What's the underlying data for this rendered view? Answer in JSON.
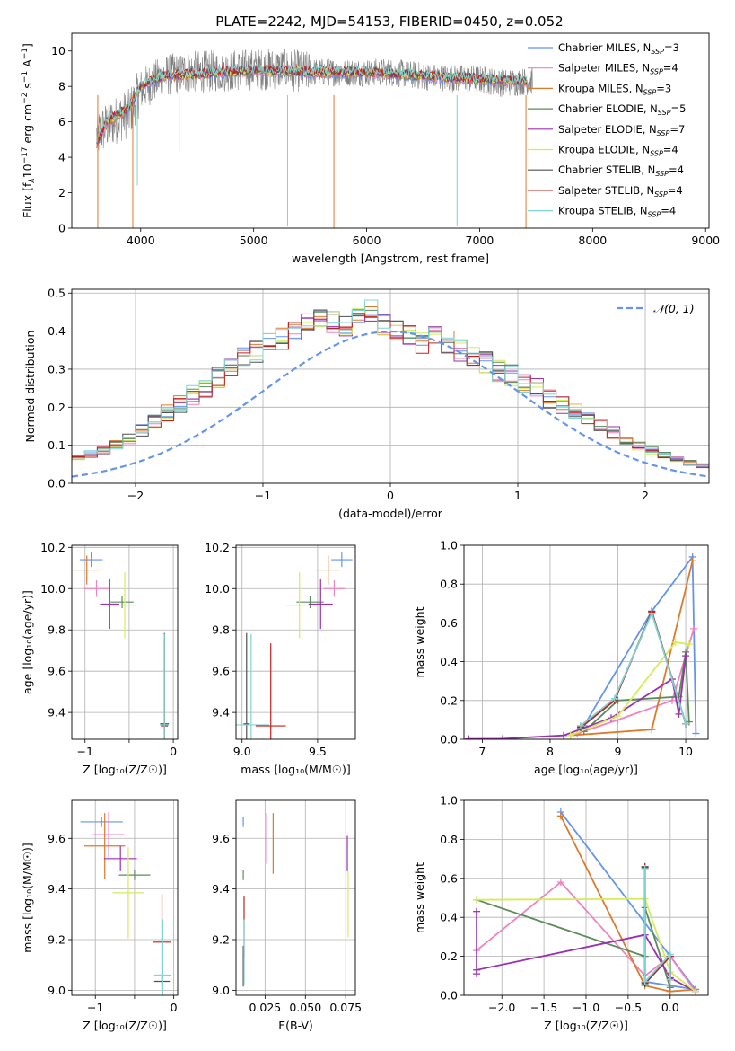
{
  "figure": {
    "title": "PLATE=2242, MJD=54153, FIBERID=0450, z=0.052"
  },
  "colors": {
    "Chabrier MILES": "#6495ed",
    "Salpeter MILES": "#ee82c2",
    "Kroupa MILES": "#e0782a",
    "Chabrier ELODIE": "#5c8c5c",
    "Salpeter ELODIE": "#9b30b0",
    "Kroupa ELODIE": "#d4ec5a",
    "Chabrier STELIB": "#505050",
    "Salpeter STELIB": "#c81e1e",
    "Kroupa STELIB": "#7fd4d4",
    "data_spectrum": "#808080",
    "normal_curve": "#6495ed"
  },
  "chart_data": [
    {
      "id": "spectrum",
      "type": "line",
      "xlabel": "wavelength [Angstrom, rest frame]",
      "ylabel_parts": [
        "Flux [f",
        "λ",
        "10",
        "−17",
        " erg cm",
        "−2",
        " s",
        "−1",
        " A",
        "−1",
        "]"
      ],
      "xlim": [
        3390,
        9030
      ],
      "ylim": [
        0,
        11
      ],
      "xticks": [
        4000,
        5000,
        6000,
        7000,
        8000,
        9000
      ],
      "yticks": [
        0,
        2,
        4,
        6,
        8,
        10
      ],
      "grid": false,
      "legend_position": "upper right",
      "legend": [
        {
          "label": "Chabrier MILES",
          "nssp": "3"
        },
        {
          "label": "Salpeter MILES",
          "nssp": "4"
        },
        {
          "label": "Kroupa MILES",
          "nssp": "3"
        },
        {
          "label": "Chabrier ELODIE",
          "nssp": "5"
        },
        {
          "label": "Salpeter ELODIE",
          "nssp": "7"
        },
        {
          "label": "Kroupa ELODIE",
          "nssp": "4"
        },
        {
          "label": "Chabrier STELIB",
          "nssp": "4"
        },
        {
          "label": "Salpeter STELIB",
          "nssp": "4"
        },
        {
          "label": "Kroupa STELIB",
          "nssp": "4"
        }
      ],
      "data_range": [
        3610,
        7470
      ],
      "data_anchors": [
        [
          3610,
          5.2
        ],
        [
          3700,
          5.8
        ],
        [
          3900,
          6.5
        ],
        [
          4000,
          7.8
        ],
        [
          4200,
          8.6
        ],
        [
          4400,
          8.8
        ],
        [
          4800,
          8.9
        ],
        [
          5200,
          9.0
        ],
        [
          5500,
          8.8
        ],
        [
          5800,
          8.8
        ],
        [
          6200,
          8.8
        ],
        [
          6600,
          8.5
        ],
        [
          7000,
          8.4
        ],
        [
          7200,
          8.2
        ],
        [
          7470,
          8.3
        ]
      ],
      "model_range": [
        3610,
        7420
      ],
      "model_anchors": [
        [
          3610,
          4.8
        ],
        [
          3700,
          6.0
        ],
        [
          3900,
          6.8
        ],
        [
          4000,
          8.0
        ],
        [
          4200,
          8.6
        ],
        [
          4500,
          8.7
        ],
        [
          5000,
          8.9
        ],
        [
          5500,
          8.8
        ],
        [
          6000,
          8.8
        ],
        [
          6500,
          8.6
        ],
        [
          7000,
          8.4
        ],
        [
          7420,
          8.3
        ]
      ],
      "dips": [
        [
          3620,
          0.0
        ],
        [
          3720,
          0.0
        ],
        [
          3930,
          0.0
        ],
        [
          3970,
          2.4
        ],
        [
          4340,
          4.4
        ],
        [
          5300,
          0.1
        ],
        [
          5710,
          0.0
        ],
        [
          6800,
          0.1
        ],
        [
          7410,
          0.0
        ]
      ]
    },
    {
      "id": "residuals",
      "type": "histogram",
      "xlabel": "(data-model)/error",
      "ylabel": "Normed distribution",
      "xlim": [
        -2.5,
        2.5
      ],
      "ylim": [
        0,
        0.51
      ],
      "xticks": [
        -2,
        -1,
        0,
        1,
        2
      ],
      "yticks": [
        0.0,
        0.1,
        0.2,
        0.3,
        0.4,
        0.5
      ],
      "grid": true,
      "legend_position": "upper right",
      "legend_label": "𝒩(0, 1)",
      "bin_width": 0.1,
      "series_base": [
        0.02,
        0.022,
        0.028,
        0.034,
        0.042,
        0.047,
        0.054,
        0.062,
        0.068,
        0.077,
        0.086,
        0.101,
        0.118,
        0.14,
        0.163,
        0.186,
        0.21,
        0.231,
        0.251,
        0.275,
        0.304,
        0.327,
        0.347,
        0.369,
        0.382,
        0.397,
        0.42,
        0.44,
        0.426,
        0.41,
        0.433,
        0.452,
        0.414,
        0.4,
        0.387,
        0.371,
        0.384,
        0.371,
        0.349,
        0.332,
        0.316,
        0.296,
        0.284,
        0.268,
        0.246,
        0.223,
        0.205,
        0.187,
        0.168,
        0.151,
        0.134,
        0.114,
        0.097,
        0.085,
        0.074,
        0.063,
        0.054,
        0.046,
        0.038,
        0.031,
        0.027,
        0.025,
        0.022,
        0.02,
        0.023,
        0.021,
        0.024,
        0.022
      ]
    },
    {
      "id": "age_vs_Z",
      "type": "errorbar",
      "xlabel": "Z [log₁₀(Z/Z☉)]",
      "ylabel": "age  [log₁₀(age/yr)]",
      "xlim": [
        -1.15,
        0.05
      ],
      "ylim": [
        9.27,
        10.21
      ],
      "xticks": [
        -1,
        -0.5,
        0
      ],
      "xticklabels": [
        "−1",
        "",
        "0"
      ],
      "yticks": [
        9.4,
        9.6,
        9.8,
        10.0,
        10.2
      ],
      "grid": true,
      "points": [
        {
          "series": "Chabrier MILES",
          "x": -0.93,
          "y": 10.14,
          "xerr": 0.13,
          "yerr": 0.035
        },
        {
          "series": "Salpeter MILES",
          "x": -0.87,
          "y": 10.0,
          "xerr": 0.14,
          "yerr": 0.04
        },
        {
          "series": "Kroupa MILES",
          "x": -0.98,
          "y": 10.09,
          "xerr": 0.15,
          "yerr": 0.07
        },
        {
          "series": "Chabrier ELODIE",
          "x": -0.58,
          "y": 9.935,
          "xerr": 0.13,
          "yerr": 0.03
        },
        {
          "series": "Salpeter ELODIE",
          "x": -0.72,
          "y": 9.925,
          "xerr": 0.11,
          "yerr": 0.12
        },
        {
          "series": "Kroupa ELODIE",
          "x": -0.55,
          "y": 9.92,
          "xerr": 0.14,
          "yerr": 0.16
        },
        {
          "series": "Chabrier STELIB",
          "x": -0.1,
          "y": 9.345,
          "xerr": 0.05,
          "yerr": 0.44
        },
        {
          "series": "Salpeter STELIB",
          "x": -0.1,
          "y": 9.335,
          "xerr": 0.04,
          "yerr": 0.42
        },
        {
          "series": "Kroupa STELIB",
          "x": -0.1,
          "y": 9.34,
          "xerr": 0.05,
          "yerr": 0.44
        }
      ]
    },
    {
      "id": "age_vs_mass",
      "type": "errorbar",
      "xlabel": "mass [log₁₀(M/M☉)]",
      "ylabel": "",
      "xlim": [
        8.96,
        9.75
      ],
      "ylim": [
        9.27,
        10.21
      ],
      "xticks": [
        9.0,
        9.5
      ],
      "xticklabels": [
        "9.0",
        "9.5"
      ],
      "yticks": [
        9.4,
        9.6,
        9.8,
        10.0,
        10.2
      ],
      "grid": true,
      "points": [
        {
          "series": "Chabrier MILES",
          "x": 9.66,
          "y": 10.14,
          "xerr": 0.07,
          "yerr": 0.035
        },
        {
          "series": "Salpeter MILES",
          "x": 9.61,
          "y": 10.0,
          "xerr": 0.07,
          "yerr": 0.04
        },
        {
          "series": "Kroupa MILES",
          "x": 9.57,
          "y": 10.09,
          "xerr": 0.08,
          "yerr": 0.07
        },
        {
          "series": "Chabrier ELODIE",
          "x": 9.45,
          "y": 9.935,
          "xerr": 0.09,
          "yerr": 0.03
        },
        {
          "series": "Salpeter ELODIE",
          "x": 9.52,
          "y": 9.925,
          "xerr": 0.08,
          "yerr": 0.12
        },
        {
          "series": "Kroupa ELODIE",
          "x": 9.38,
          "y": 9.92,
          "xerr": 0.09,
          "yerr": 0.16
        },
        {
          "series": "Chabrier STELIB",
          "x": 9.03,
          "y": 9.345,
          "xerr": 0.02,
          "yerr": 0.44
        },
        {
          "series": "Salpeter STELIB",
          "x": 9.19,
          "y": 9.335,
          "xerr": 0.1,
          "yerr": 0.4
        },
        {
          "series": "Kroupa STELIB",
          "x": 9.06,
          "y": 9.34,
          "xerr": 0.12,
          "yerr": 0.44
        }
      ]
    },
    {
      "id": "weight_vs_age",
      "type": "line",
      "xlabel": "age  [log₁₀(age/yr)]",
      "ylabel": "mass weight",
      "xlim": [
        6.73,
        10.33
      ],
      "ylim": [
        0,
        1
      ],
      "xticks": [
        7,
        8,
        9,
        10
      ],
      "yticks": [
        0.0,
        0.2,
        0.4,
        0.6,
        0.8,
        1.0
      ],
      "grid": true,
      "series": [
        {
          "name": "Chabrier MILES",
          "x": [
            8.5,
            9.5,
            10.1,
            10.15
          ],
          "y": [
            0.07,
            0.66,
            0.94,
            0.03
          ]
        },
        {
          "name": "Salpeter MILES",
          "x": [
            8.4,
            9.0,
            9.8,
            10.12
          ],
          "y": [
            0.03,
            0.1,
            0.2,
            0.57
          ]
        },
        {
          "name": "Kroupa MILES",
          "x": [
            8.3,
            9.5,
            10.1
          ],
          "y": [
            0.02,
            0.05,
            0.92
          ]
        },
        {
          "name": "Chabrier ELODIE",
          "x": [
            8.5,
            9.0,
            9.9,
            10.0,
            10.05
          ],
          "y": [
            0.04,
            0.2,
            0.22,
            0.45,
            0.09
          ]
        },
        {
          "name": "Salpeter ELODIE",
          "x": [
            6.8,
            7.3,
            8.2,
            8.9,
            9.8,
            9.9,
            10.0
          ],
          "y": [
            0.002,
            0.003,
            0.02,
            0.11,
            0.31,
            0.13,
            0.43
          ]
        },
        {
          "name": "Kroupa ELODIE",
          "x": [
            8.3,
            9.0,
            9.85,
            10.05
          ],
          "y": [
            0.02,
            0.12,
            0.5,
            0.49
          ]
        },
        {
          "name": "Chabrier STELIB",
          "x": [
            8.45,
            8.95,
            9.5,
            10.0
          ],
          "y": [
            0.06,
            0.2,
            0.66,
            0.08
          ]
        },
        {
          "name": "Salpeter STELIB",
          "x": [
            8.45,
            8.95,
            9.5,
            10.0
          ],
          "y": [
            0.065,
            0.2,
            0.655,
            0.08
          ]
        },
        {
          "name": "Kroupa STELIB",
          "x": [
            8.45,
            8.95,
            9.5,
            10.0
          ],
          "y": [
            0.07,
            0.21,
            0.65,
            0.08
          ]
        }
      ]
    },
    {
      "id": "mass_vs_Z",
      "type": "errorbar",
      "xlabel": "Z [log₁₀(Z/Z☉)]",
      "ylabel": "mass [log₁₀(M/M☉)]",
      "xlim": [
        -1.3,
        0.05
      ],
      "ylim": [
        8.98,
        9.75
      ],
      "xticks": [
        -1,
        -0.5,
        0
      ],
      "xticklabels": [
        "−1",
        "",
        "0"
      ],
      "yticks": [
        9.0,
        9.2,
        9.4,
        9.6
      ],
      "grid": true,
      "points": [
        {
          "series": "Chabrier MILES",
          "x": -0.92,
          "y": 9.665,
          "xerr": 0.27,
          "yerr": 0.02
        },
        {
          "series": "Salpeter MILES",
          "x": -0.83,
          "y": 9.615,
          "xerr": 0.2,
          "yerr": 0.09
        },
        {
          "series": "Kroupa MILES",
          "x": -0.88,
          "y": 9.57,
          "xerr": 0.26,
          "yerr": 0.13
        },
        {
          "series": "Chabrier ELODIE",
          "x": -0.5,
          "y": 9.455,
          "xerr": 0.2,
          "yerr": 0.02
        },
        {
          "series": "Salpeter ELODIE",
          "x": -0.68,
          "y": 9.52,
          "xerr": 0.21,
          "yerr": 0.05
        },
        {
          "series": "Kroupa ELODIE",
          "x": -0.58,
          "y": 9.385,
          "xerr": 0.2,
          "yerr": 0.18
        },
        {
          "series": "Chabrier STELIB",
          "x": -0.15,
          "y": 9.035,
          "xerr": 0.1,
          "yerr": 0.02
        },
        {
          "series": "Salpeter STELIB",
          "x": -0.15,
          "y": 9.19,
          "xerr": 0.12,
          "yerr": 0.19
        },
        {
          "series": "Kroupa STELIB",
          "x": -0.14,
          "y": 9.06,
          "xerr": 0.11,
          "yerr": 0.22
        }
      ]
    },
    {
      "id": "mass_vs_ebv",
      "type": "errorbar",
      "xlabel": "E(B-V)",
      "ylabel": "",
      "xlim": [
        0.007,
        0.081
      ],
      "ylim": [
        8.98,
        9.75
      ],
      "xticks": [
        0.025,
        0.05,
        0.075
      ],
      "xticklabels": [
        "0.025",
        "0.050",
        "0.075"
      ],
      "yticks": [
        9.0,
        9.2,
        9.4,
        9.6
      ],
      "grid": true,
      "points": [
        {
          "series": "Chabrier MILES",
          "x": 0.0115,
          "y": 9.665,
          "xerr": 0.0,
          "yerr": 0.02
        },
        {
          "series": "Salpeter MILES",
          "x": 0.026,
          "y": 9.6,
          "xerr": 0.0,
          "yerr": 0.1
        },
        {
          "series": "Kroupa MILES",
          "x": 0.03,
          "y": 9.58,
          "xerr": 0.0,
          "yerr": 0.12
        },
        {
          "series": "Chabrier ELODIE",
          "x": 0.0115,
          "y": 9.455,
          "xerr": 0.0,
          "yerr": 0.02
        },
        {
          "series": "Salpeter ELODIE",
          "x": 0.076,
          "y": 9.54,
          "xerr": 0.0,
          "yerr": 0.07
        },
        {
          "series": "Kroupa ELODIE",
          "x": 0.0765,
          "y": 9.34,
          "xerr": 0.0,
          "yerr": 0.13
        },
        {
          "series": "Chabrier STELIB",
          "x": 0.0115,
          "y": 9.095,
          "xerr": 0.0,
          "yerr": 0.08
        },
        {
          "series": "Salpeter STELIB",
          "x": 0.012,
          "y": 9.25,
          "xerr": 0.0,
          "yerr": 0.12
        },
        {
          "series": "Kroupa STELIB",
          "x": 0.012,
          "y": 9.15,
          "xerr": 0.0,
          "yerr": 0.13
        }
      ]
    },
    {
      "id": "weight_vs_Z",
      "type": "line",
      "xlabel": "Z [log₁₀(Z/Z☉)]",
      "ylabel": "mass weight",
      "xlim": [
        -2.45,
        0.45
      ],
      "ylim": [
        0,
        1
      ],
      "xticks": [
        -2.0,
        -1.5,
        -1.0,
        -0.5,
        0.0
      ],
      "xticklabels": [
        "−2.0",
        "−1.5",
        "−1.0",
        "−0.5",
        "0.0"
      ],
      "yticks": [
        0.0,
        0.2,
        0.4,
        0.6,
        0.8,
        1.0
      ],
      "grid": true,
      "series": [
        {
          "name": "Chabrier MILES",
          "x": [
            -1.3,
            0.3,
            -0.3
          ],
          "y": [
            0.94,
            0.03,
            0.07
          ]
        },
        {
          "name": "Salpeter MILES",
          "x": [
            -2.3,
            -1.3,
            -0.3,
            0.0,
            0.3
          ],
          "y": [
            0.23,
            0.58,
            0.1,
            0.2,
            0.02
          ]
        },
        {
          "name": "Kroupa MILES",
          "x": [
            -1.3,
            -0.3,
            0.0,
            0.3
          ],
          "y": [
            0.92,
            0.05,
            0.02,
            0.03
          ]
        },
        {
          "name": "Chabrier ELODIE",
          "x": [
            -2.3,
            -0.3,
            -0.3,
            0.0
          ],
          "y": [
            0.49,
            0.2,
            0.45,
            0.04
          ]
        },
        {
          "name": "Salpeter ELODIE",
          "x": [
            -2.3,
            -2.3,
            -2.3,
            -0.3,
            0.0,
            0.3
          ],
          "y": [
            0.43,
            0.11,
            0.13,
            0.31,
            0.09,
            0.02
          ]
        },
        {
          "name": "Kroupa ELODIE",
          "x": [
            -2.3,
            -0.3,
            0.0,
            0.3
          ],
          "y": [
            0.49,
            0.495,
            0.12,
            0.02
          ]
        },
        {
          "name": "Chabrier STELIB",
          "x": [
            -0.3,
            -0.3,
            0.0,
            0.0
          ],
          "y": [
            0.66,
            0.06,
            0.2,
            0.08
          ]
        },
        {
          "name": "Salpeter STELIB",
          "x": [
            -0.3,
            -0.3,
            0.0,
            0.0
          ],
          "y": [
            0.655,
            0.065,
            0.2,
            0.08
          ]
        },
        {
          "name": "Kroupa STELIB",
          "x": [
            -0.3,
            -0.3,
            0.0,
            0.0
          ],
          "y": [
            0.65,
            0.07,
            0.21,
            0.08
          ]
        }
      ]
    }
  ]
}
